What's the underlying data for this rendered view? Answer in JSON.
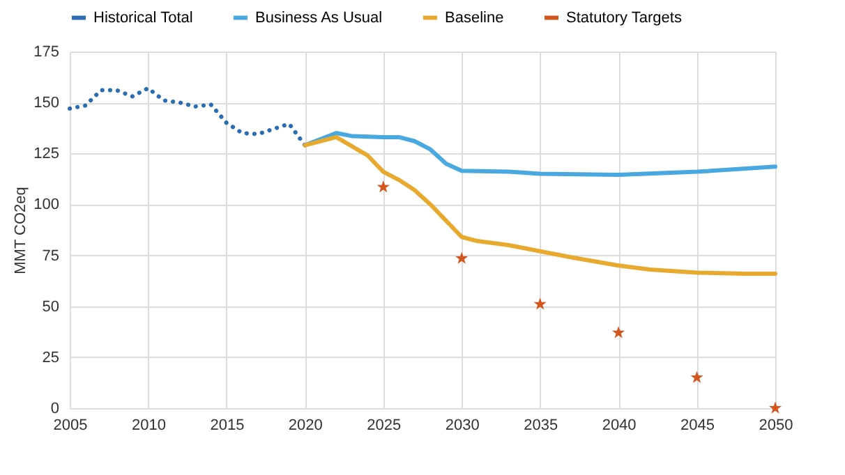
{
  "chart_data": {
    "type": "line",
    "ylabel": "MMT CO2eq",
    "xlim": [
      2005,
      2050
    ],
    "xticks": [
      2005,
      2010,
      2015,
      2020,
      2025,
      2030,
      2035,
      2040,
      2045,
      2050
    ],
    "ylim": [
      0,
      175
    ],
    "yticks": [
      0,
      25,
      50,
      75,
      100,
      125,
      150,
      175
    ],
    "grid": true,
    "legend": "top",
    "series": [
      {
        "name": "Historical Total",
        "color": "#2a6db3",
        "line_style": "dotted",
        "x": [
          2005,
          2006,
          2007,
          2008,
          2009,
          2010,
          2011,
          2012,
          2013,
          2014,
          2015,
          2016,
          2017,
          2018,
          2019,
          2020
        ],
        "values": [
          147,
          148.5,
          156,
          156,
          153,
          157,
          151,
          150,
          148,
          149,
          140,
          135,
          134.5,
          137,
          139.5,
          129
        ]
      },
      {
        "name": "Business As Usual",
        "color": "#4aa8e0",
        "x": [
          2020,
          2022,
          2023,
          2025,
          2026,
          2027,
          2028,
          2029,
          2030,
          2033,
          2035,
          2040,
          2045,
          2050
        ],
        "values": [
          129,
          135,
          133.5,
          133,
          133,
          131,
          127,
          120,
          116.5,
          116,
          115,
          114.5,
          116,
          118.5
        ]
      },
      {
        "name": "Baseline",
        "color": "#e8aa2e",
        "x": [
          2020,
          2022,
          2024,
          2025,
          2026,
          2027,
          2028,
          2030,
          2031,
          2033,
          2035,
          2037,
          2040,
          2042,
          2045,
          2048,
          2050
        ],
        "values": [
          129,
          133,
          124,
          116,
          112,
          107,
          100,
          84,
          82,
          80,
          77,
          74,
          70,
          68,
          66.5,
          66,
          66
        ]
      },
      {
        "name": "Statutory Targets",
        "color": "#d4561f",
        "type": "scatter",
        "marker": "star",
        "x": [
          2025,
          2030,
          2035,
          2040,
          2045,
          2050
        ],
        "values": [
          108.5,
          73.5,
          51,
          37,
          15,
          0
        ]
      }
    ]
  }
}
